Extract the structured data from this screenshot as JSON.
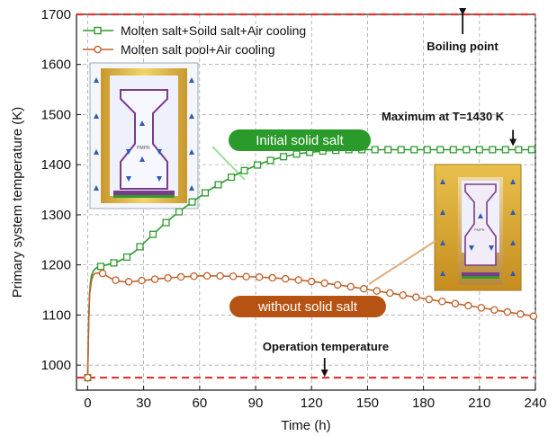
{
  "chart_data": {
    "type": "line",
    "xlabel": "Time (h)",
    "ylabel": "Primary system temperature (K)",
    "xlim": [
      -6,
      240
    ],
    "ylim": [
      950,
      1700
    ],
    "x_ticks": [
      0,
      30,
      60,
      90,
      120,
      150,
      180,
      210,
      240
    ],
    "y_ticks": [
      1000,
      1100,
      1200,
      1300,
      1400,
      1500,
      1600,
      1700
    ],
    "grid": "dashed",
    "legend_position": "top-left",
    "series": [
      {
        "name": "Molten salt+Soild salt+Air cooling",
        "color": "#2e9a2e",
        "marker": "square",
        "x": [
          -1,
          0,
          0.5,
          1,
          1.5,
          2,
          3,
          4,
          5,
          6,
          8,
          10,
          15,
          20,
          25,
          30,
          35,
          40,
          45,
          50,
          55,
          60,
          65,
          70,
          75,
          80,
          85,
          90,
          95,
          100,
          105,
          110,
          115,
          120,
          125,
          130,
          135,
          140,
          145,
          150,
          155,
          160,
          165,
          170,
          175,
          180,
          185,
          190,
          195,
          200,
          205,
          210,
          215,
          220,
          225,
          230,
          235,
          240
        ],
        "y": [
          975,
          975,
          1080,
          1140,
          1165,
          1178,
          1188,
          1192,
          1195,
          1196,
          1198,
          1200,
          1205,
          1213,
          1226,
          1243,
          1261,
          1278,
          1294,
          1309,
          1323,
          1336,
          1349,
          1360,
          1371,
          1381,
          1390,
          1398,
          1405,
          1411,
          1416,
          1420,
          1423,
          1425,
          1427,
          1428,
          1429,
          1430,
          1430,
          1430,
          1430,
          1430,
          1430,
          1430,
          1430,
          1430,
          1430,
          1430,
          1430,
          1430,
          1430,
          1430,
          1430,
          1430,
          1430,
          1430,
          1430,
          1430
        ],
        "marker_x": [
          0,
          7,
          14,
          21,
          28,
          35,
          42,
          49,
          56,
          63,
          70,
          77,
          84,
          91,
          98,
          105,
          112,
          119,
          126,
          133,
          140,
          147,
          154,
          161,
          168,
          175,
          182,
          189,
          196,
          203,
          210,
          217,
          224,
          231,
          238
        ]
      },
      {
        "name": "Molten salt pool+Air cooling",
        "color": "#c0622a",
        "marker": "circle",
        "x": [
          -1,
          0,
          0.5,
          1,
          2,
          3,
          4,
          6,
          8,
          12,
          16,
          20,
          25,
          30,
          40,
          50,
          60,
          70,
          80,
          90,
          100,
          110,
          120,
          130,
          140,
          150,
          160,
          170,
          180,
          190,
          200,
          210,
          220,
          230,
          240
        ],
        "y": [
          975,
          975,
          1080,
          1140,
          1168,
          1180,
          1183,
          1184,
          1183,
          1174,
          1168,
          1166,
          1167,
          1169,
          1173,
          1176,
          1178,
          1178,
          1177,
          1176,
          1174,
          1171,
          1167,
          1162,
          1157,
          1151,
          1145,
          1139,
          1133,
          1127,
          1121,
          1115,
          1109,
          1103,
          1097
        ],
        "marker_x": [
          0,
          8,
          15,
          22,
          29,
          36,
          43,
          50,
          57,
          64,
          71,
          78,
          85,
          92,
          99,
          106,
          113,
          120,
          127,
          134,
          141,
          148,
          155,
          162,
          169,
          176,
          183,
          190,
          197,
          204,
          211,
          218,
          225,
          232,
          239
        ]
      }
    ],
    "reference_lines": [
      {
        "label": "Boiling point",
        "y": 1700,
        "color": "#e8332a"
      },
      {
        "label": "Operation temperature",
        "y": 975,
        "color": "#e8332a"
      }
    ],
    "annotations": {
      "maximum": "Maximum at T=1430 K",
      "maximum_x": 228,
      "maximum_y": 1430,
      "boiling_arrow_x": 201,
      "operation_arrow_x": 127
    },
    "callouts": [
      {
        "label": "Initial solid salt",
        "color": "#2a9a2a"
      },
      {
        "label": "without solid salt",
        "color": "#b75312"
      }
    ]
  }
}
